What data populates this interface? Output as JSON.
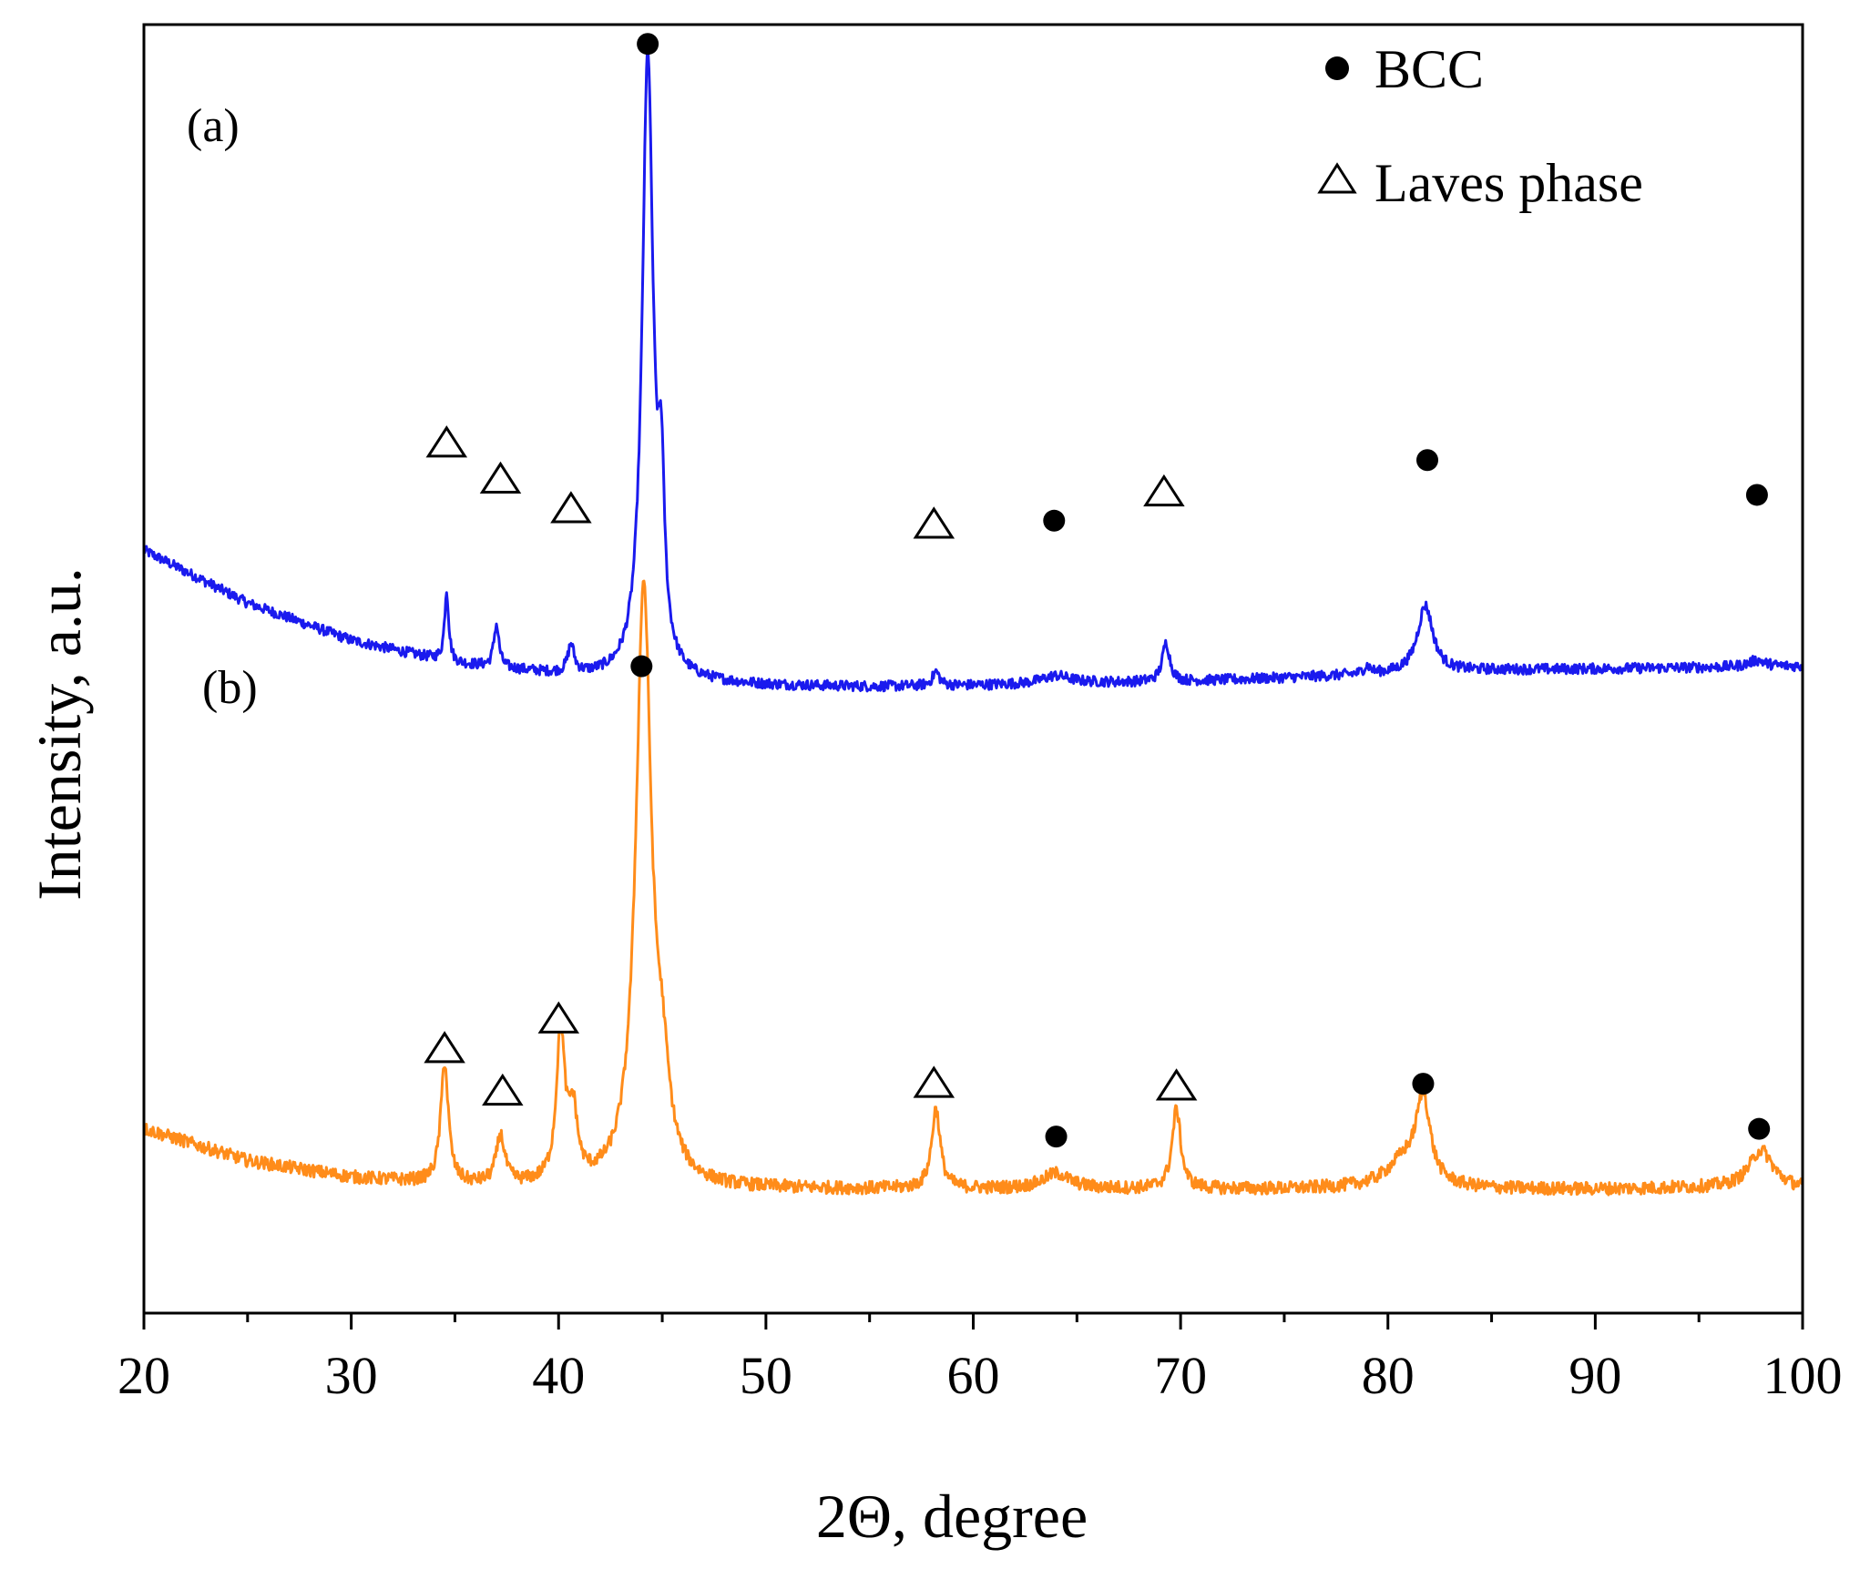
{
  "chart_data": {
    "type": "line",
    "title": "",
    "xlabel": "2Θ, degree",
    "ylabel": "Intensity, a.u.",
    "xlim": [
      20,
      100
    ],
    "ylim": [
      0,
      1000
    ],
    "x_ticks": [
      20,
      30,
      40,
      50,
      60,
      70,
      80,
      90,
      100
    ],
    "x_tick_labels": [
      "20",
      "30",
      "40",
      "50",
      "60",
      "70",
      "80",
      "90",
      "100"
    ],
    "y_tick_labels_shown": false,
    "grid": false,
    "legend": {
      "placement": "top-right",
      "entries": [
        {
          "marker": "filled-circle",
          "label": "BCC"
        },
        {
          "marker": "open-triangle",
          "label": "Laves phase"
        }
      ]
    },
    "series": [
      {
        "name": "(a)",
        "label": "(a)",
        "color": "#1a1aee",
        "noise": 4,
        "background": [
          [
            20,
            592
          ],
          [
            25,
            551
          ],
          [
            30,
            522
          ],
          [
            35,
            504
          ],
          [
            40,
            495
          ],
          [
            45,
            490
          ],
          [
            50,
            487
          ],
          [
            55,
            486
          ],
          [
            60,
            487
          ],
          [
            65,
            489
          ],
          [
            70,
            490
          ],
          [
            75,
            493
          ],
          [
            80,
            496
          ],
          [
            85,
            499
          ],
          [
            90,
            500
          ],
          [
            95,
            501
          ],
          [
            100,
            502
          ]
        ],
        "peaks": [
          {
            "center": 34.6,
            "height": 55,
            "width": 0.12
          },
          {
            "center": 37.0,
            "height": 33,
            "width": 0.15
          },
          {
            "center": 40.6,
            "height": 22,
            "width": 0.18
          },
          {
            "center": 44.3,
            "height": 482,
            "width": 0.32
          },
          {
            "center": 44.95,
            "height": 120,
            "width": 0.18
          },
          {
            "center": 58.2,
            "height": 11,
            "width": 0.2
          },
          {
            "center": 64.0,
            "height": 6,
            "width": 0.8
          },
          {
            "center": 69.3,
            "height": 30,
            "width": 0.22
          },
          {
            "center": 79.0,
            "height": 6,
            "width": 0.2
          },
          {
            "center": 81.8,
            "height": 52,
            "width": 0.45
          },
          {
            "center": 97.8,
            "height": 5,
            "width": 0.5
          }
        ]
      },
      {
        "name": "(b)",
        "label": "(b)",
        "color": "#ff8c1a",
        "noise": 5,
        "background": [
          [
            20,
            143
          ],
          [
            25,
            118
          ],
          [
            30,
            105
          ],
          [
            35,
            99
          ],
          [
            40,
            97
          ],
          [
            45,
            96
          ],
          [
            50,
            96
          ],
          [
            55,
            96
          ],
          [
            60,
            96
          ],
          [
            65,
            96
          ],
          [
            70,
            96
          ],
          [
            75,
            96
          ],
          [
            80,
            97
          ],
          [
            85,
            96
          ],
          [
            90,
            96
          ],
          [
            95,
            97
          ],
          [
            100,
            96
          ]
        ],
        "peaks": [
          {
            "center": 34.5,
            "height": 94,
            "width": 0.22
          },
          {
            "center": 37.2,
            "height": 37,
            "width": 0.25
          },
          {
            "center": 40.1,
            "height": 115,
            "width": 0.25
          },
          {
            "center": 40.7,
            "height": 50,
            "width": 0.25
          },
          {
            "center": 44.1,
            "height": 462,
            "width": 0.45
          },
          {
            "center": 45.0,
            "height": 60,
            "width": 0.4
          },
          {
            "center": 58.2,
            "height": 62,
            "width": 0.25
          },
          {
            "center": 64.0,
            "height": 12,
            "width": 0.8
          },
          {
            "center": 69.8,
            "height": 62,
            "width": 0.25
          },
          {
            "center": 81.7,
            "height": 65,
            "width": 0.4
          },
          {
            "center": 80.8,
            "height": 20,
            "width": 1.0
          },
          {
            "center": 98.0,
            "height": 30,
            "width": 0.7
          }
        ]
      }
    ],
    "annotations": [
      {
        "series": "(a)",
        "symbol": "circle",
        "x": 44.3,
        "y": 985
      },
      {
        "series": "(a)",
        "symbol": "triangle",
        "x": 34.6,
        "y": 675
      },
      {
        "series": "(a)",
        "symbol": "triangle",
        "x": 37.2,
        "y": 647
      },
      {
        "series": "(a)",
        "symbol": "triangle",
        "x": 40.6,
        "y": 624
      },
      {
        "series": "(a)",
        "symbol": "triangle",
        "x": 58.1,
        "y": 612
      },
      {
        "series": "(a)",
        "symbol": "circle",
        "x": 63.9,
        "y": 615
      },
      {
        "series": "(a)",
        "symbol": "triangle",
        "x": 69.2,
        "y": 637
      },
      {
        "series": "(a)",
        "symbol": "circle",
        "x": 81.9,
        "y": 662
      },
      {
        "series": "(a)",
        "symbol": "circle",
        "x": 97.8,
        "y": 635
      },
      {
        "series": "(b)",
        "symbol": "circle",
        "x": 44.0,
        "y": 502
      },
      {
        "series": "(b)",
        "symbol": "triangle",
        "x": 34.5,
        "y": 205
      },
      {
        "series": "(b)",
        "symbol": "triangle",
        "x": 37.3,
        "y": 172
      },
      {
        "series": "(b)",
        "symbol": "triangle",
        "x": 40.0,
        "y": 228
      },
      {
        "series": "(b)",
        "symbol": "triangle",
        "x": 58.1,
        "y": 178
      },
      {
        "series": "(b)",
        "symbol": "circle",
        "x": 64.0,
        "y": 137
      },
      {
        "series": "(b)",
        "symbol": "triangle",
        "x": 69.8,
        "y": 176
      },
      {
        "series": "(b)",
        "symbol": "circle",
        "x": 81.7,
        "y": 178
      },
      {
        "series": "(b)",
        "symbol": "circle",
        "x": 97.9,
        "y": 143
      }
    ]
  }
}
